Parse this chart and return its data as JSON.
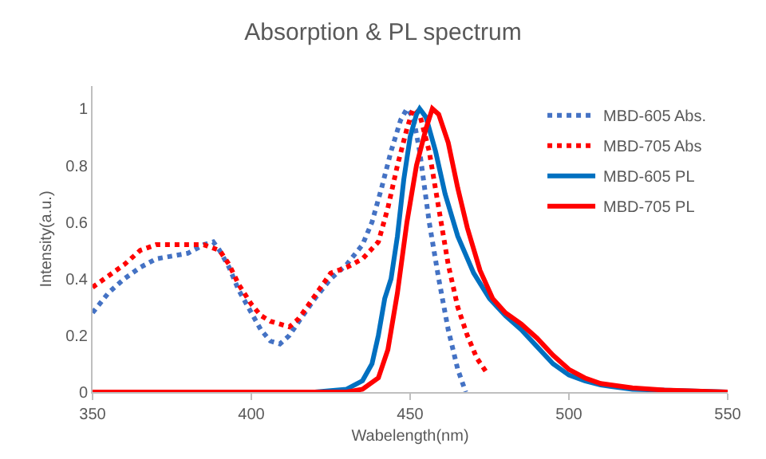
{
  "chart_data": {
    "type": "line",
    "title": "Absorption & PL spectrum",
    "xlabel": "Wabelength(nm)",
    "ylabel": "Intensity(a.u.)",
    "xlim": [
      350,
      550
    ],
    "xticks": [
      350,
      400,
      450,
      500,
      550
    ],
    "ylim": [
      0,
      1.08
    ],
    "yticks": [
      0,
      0.2,
      0.4,
      0.6,
      0.8,
      1
    ],
    "grid": false,
    "legend": "top right",
    "marker": "none",
    "series": [
      {
        "name": "MBD-605 Abs.",
        "color": "#4472c4",
        "line_style": "dotted",
        "x": [
          350,
          355,
          360,
          365,
          370,
          375,
          380,
          385,
          388,
          390,
          393,
          396,
          400,
          403,
          406,
          409,
          412,
          415,
          420,
          425,
          430,
          435,
          438,
          441,
          444,
          447,
          449,
          451,
          453,
          456,
          459,
          462,
          465,
          467.5
        ],
        "values": [
          0.28,
          0.35,
          0.4,
          0.44,
          0.47,
          0.48,
          0.49,
          0.52,
          0.53,
          0.5,
          0.44,
          0.36,
          0.28,
          0.22,
          0.18,
          0.17,
          0.2,
          0.25,
          0.33,
          0.4,
          0.45,
          0.52,
          0.6,
          0.72,
          0.85,
          0.96,
          1.0,
          0.97,
          0.85,
          0.6,
          0.4,
          0.22,
          0.08,
          0
        ]
      },
      {
        "name": "MBD-705 Abs",
        "color": "#ff0000",
        "line_style": "dotted",
        "x": [
          350,
          355,
          360,
          365,
          370,
          375,
          380,
          385,
          390,
          393,
          396,
          400,
          403,
          406,
          409,
          412,
          415,
          420,
          425,
          430,
          435,
          440,
          443,
          446,
          449,
          451,
          453,
          456,
          459,
          462,
          465,
          468,
          471,
          474
        ],
        "values": [
          0.37,
          0.41,
          0.45,
          0.5,
          0.52,
          0.52,
          0.52,
          0.52,
          0.5,
          0.45,
          0.38,
          0.31,
          0.27,
          0.25,
          0.24,
          0.23,
          0.26,
          0.34,
          0.42,
          0.44,
          0.47,
          0.53,
          0.65,
          0.8,
          0.93,
          1.0,
          0.98,
          0.85,
          0.65,
          0.45,
          0.3,
          0.2,
          0.12,
          0.07
        ]
      },
      {
        "name": "MBD-605 PL",
        "color": "#0070c0",
        "line_style": "solid",
        "x": [
          350,
          420,
          430,
          435,
          438,
          440,
          442,
          444,
          446,
          448,
          450,
          452,
          453,
          455,
          458,
          461,
          465,
          470,
          475,
          480,
          485,
          490,
          495,
          500,
          505,
          510,
          520,
          550
        ],
        "values": [
          0,
          0,
          0.01,
          0.04,
          0.1,
          0.2,
          0.33,
          0.4,
          0.55,
          0.75,
          0.9,
          0.98,
          1.0,
          0.97,
          0.85,
          0.7,
          0.55,
          0.42,
          0.33,
          0.27,
          0.22,
          0.16,
          0.1,
          0.06,
          0.04,
          0.025,
          0.01,
          0
        ]
      },
      {
        "name": "MBD-705 PL",
        "color": "#ff0000",
        "line_style": "solid",
        "x": [
          350,
          430,
          435,
          440,
          443,
          446,
          449,
          452,
          455,
          457,
          459,
          462,
          465,
          468,
          472,
          476,
          480,
          485,
          490,
          495,
          500,
          505,
          510,
          520,
          530,
          550
        ],
        "values": [
          0,
          0,
          0.01,
          0.05,
          0.15,
          0.35,
          0.6,
          0.8,
          0.93,
          1.0,
          0.98,
          0.88,
          0.72,
          0.58,
          0.43,
          0.33,
          0.28,
          0.24,
          0.19,
          0.13,
          0.08,
          0.05,
          0.03,
          0.015,
          0.007,
          0
        ]
      }
    ]
  }
}
